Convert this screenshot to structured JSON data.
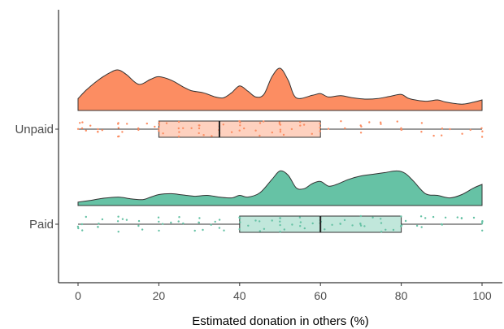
{
  "chart_data": {
    "type": "raincloud",
    "xlabel": "Estimated donation in others (%)",
    "xlim": [
      0,
      100
    ],
    "xticks": [
      "0",
      "20",
      "40",
      "60",
      "80",
      "100"
    ],
    "grid": false,
    "legend": "none",
    "groups": [
      {
        "name": "Unpaid",
        "color": "#fc8d62",
        "box": {
          "min": 0,
          "q1": 20,
          "median": 35,
          "q3": 60,
          "max": 100
        },
        "density": [
          [
            0,
            0.28
          ],
          [
            2,
            0.48
          ],
          [
            5,
            0.72
          ],
          [
            8,
            0.9
          ],
          [
            10,
            0.96
          ],
          [
            12,
            0.85
          ],
          [
            15,
            0.62
          ],
          [
            18,
            0.74
          ],
          [
            20,
            0.8
          ],
          [
            23,
            0.72
          ],
          [
            26,
            0.56
          ],
          [
            28,
            0.47
          ],
          [
            31,
            0.42
          ],
          [
            34,
            0.32
          ],
          [
            36,
            0.3
          ],
          [
            38,
            0.42
          ],
          [
            40,
            0.58
          ],
          [
            42,
            0.46
          ],
          [
            44,
            0.32
          ],
          [
            46,
            0.38
          ],
          [
            48,
            0.8
          ],
          [
            50,
            1.0
          ],
          [
            52,
            0.72
          ],
          [
            54,
            0.3
          ],
          [
            58,
            0.36
          ],
          [
            60,
            0.4
          ],
          [
            62,
            0.32
          ],
          [
            65,
            0.35
          ],
          [
            68,
            0.3
          ],
          [
            71,
            0.27
          ],
          [
            74,
            0.28
          ],
          [
            77,
            0.33
          ],
          [
            80,
            0.38
          ],
          [
            82,
            0.28
          ],
          [
            86,
            0.22
          ],
          [
            89,
            0.25
          ],
          [
            91,
            0.2
          ],
          [
            95,
            0.15
          ],
          [
            98,
            0.2
          ],
          [
            100,
            0.25
          ]
        ],
        "points": [
          0,
          0.5,
          1,
          1,
          2,
          3,
          5,
          5,
          5,
          6,
          10,
          10,
          10,
          10,
          10,
          11,
          12,
          15,
          15,
          17,
          19,
          20,
          20,
          20,
          20,
          21,
          22,
          25,
          25,
          25,
          25,
          26,
          28,
          30,
          30,
          30,
          30,
          31,
          33,
          35,
          35,
          35,
          36,
          38,
          40,
          40,
          40,
          40,
          41,
          44,
          45,
          45,
          46,
          48,
          50,
          50,
          50,
          50,
          50,
          51,
          53,
          55,
          55,
          56,
          58,
          60,
          60,
          60,
          62,
          65,
          66,
          70,
          70,
          70,
          72,
          75,
          75,
          79,
          80,
          80,
          80,
          85,
          85,
          88,
          90,
          90,
          92,
          95,
          97,
          100,
          100,
          100
        ]
      },
      {
        "name": "Paid",
        "color": "#66c2a5",
        "box": {
          "min": 0,
          "q1": 40,
          "median": 60,
          "q3": 80,
          "max": 100
        },
        "density": [
          [
            0,
            0.08
          ],
          [
            3,
            0.12
          ],
          [
            6,
            0.17
          ],
          [
            10,
            0.2
          ],
          [
            13,
            0.16
          ],
          [
            16,
            0.14
          ],
          [
            18,
            0.2
          ],
          [
            20,
            0.26
          ],
          [
            23,
            0.28
          ],
          [
            26,
            0.25
          ],
          [
            29,
            0.22
          ],
          [
            32,
            0.24
          ],
          [
            35,
            0.2
          ],
          [
            38,
            0.18
          ],
          [
            40,
            0.24
          ],
          [
            42,
            0.2
          ],
          [
            45,
            0.3
          ],
          [
            48,
            0.62
          ],
          [
            50,
            0.82
          ],
          [
            52,
            0.72
          ],
          [
            54,
            0.42
          ],
          [
            56,
            0.4
          ],
          [
            58,
            0.52
          ],
          [
            60,
            0.57
          ],
          [
            62,
            0.46
          ],
          [
            64,
            0.5
          ],
          [
            67,
            0.62
          ],
          [
            70,
            0.7
          ],
          [
            73,
            0.74
          ],
          [
            76,
            0.78
          ],
          [
            79,
            0.82
          ],
          [
            81,
            0.76
          ],
          [
            83,
            0.58
          ],
          [
            86,
            0.28
          ],
          [
            89,
            0.24
          ],
          [
            92,
            0.18
          ],
          [
            95,
            0.26
          ],
          [
            98,
            0.42
          ],
          [
            100,
            0.5
          ]
        ],
        "points": [
          0,
          0,
          1,
          1,
          2,
          5,
          5,
          5,
          6,
          10,
          10,
          10,
          11,
          12,
          15,
          15,
          16,
          20,
          20,
          20,
          21,
          23,
          25,
          25,
          26,
          29,
          30,
          30,
          30,
          31,
          33,
          34,
          35,
          35,
          36,
          40,
          40,
          40,
          40,
          42,
          44,
          45,
          45,
          46,
          48,
          50,
          50,
          50,
          50,
          50,
          51,
          53,
          55,
          55,
          55,
          56,
          58,
          60,
          60,
          60,
          60,
          60,
          61,
          63,
          65,
          65,
          66,
          68,
          70,
          70,
          70,
          70,
          71,
          73,
          75,
          75,
          75,
          76,
          78,
          80,
          80,
          80,
          80,
          81,
          84,
          85,
          85,
          86,
          88,
          90,
          90,
          91,
          94,
          95,
          95,
          98,
          100,
          100,
          100,
          100
        ]
      }
    ]
  }
}
